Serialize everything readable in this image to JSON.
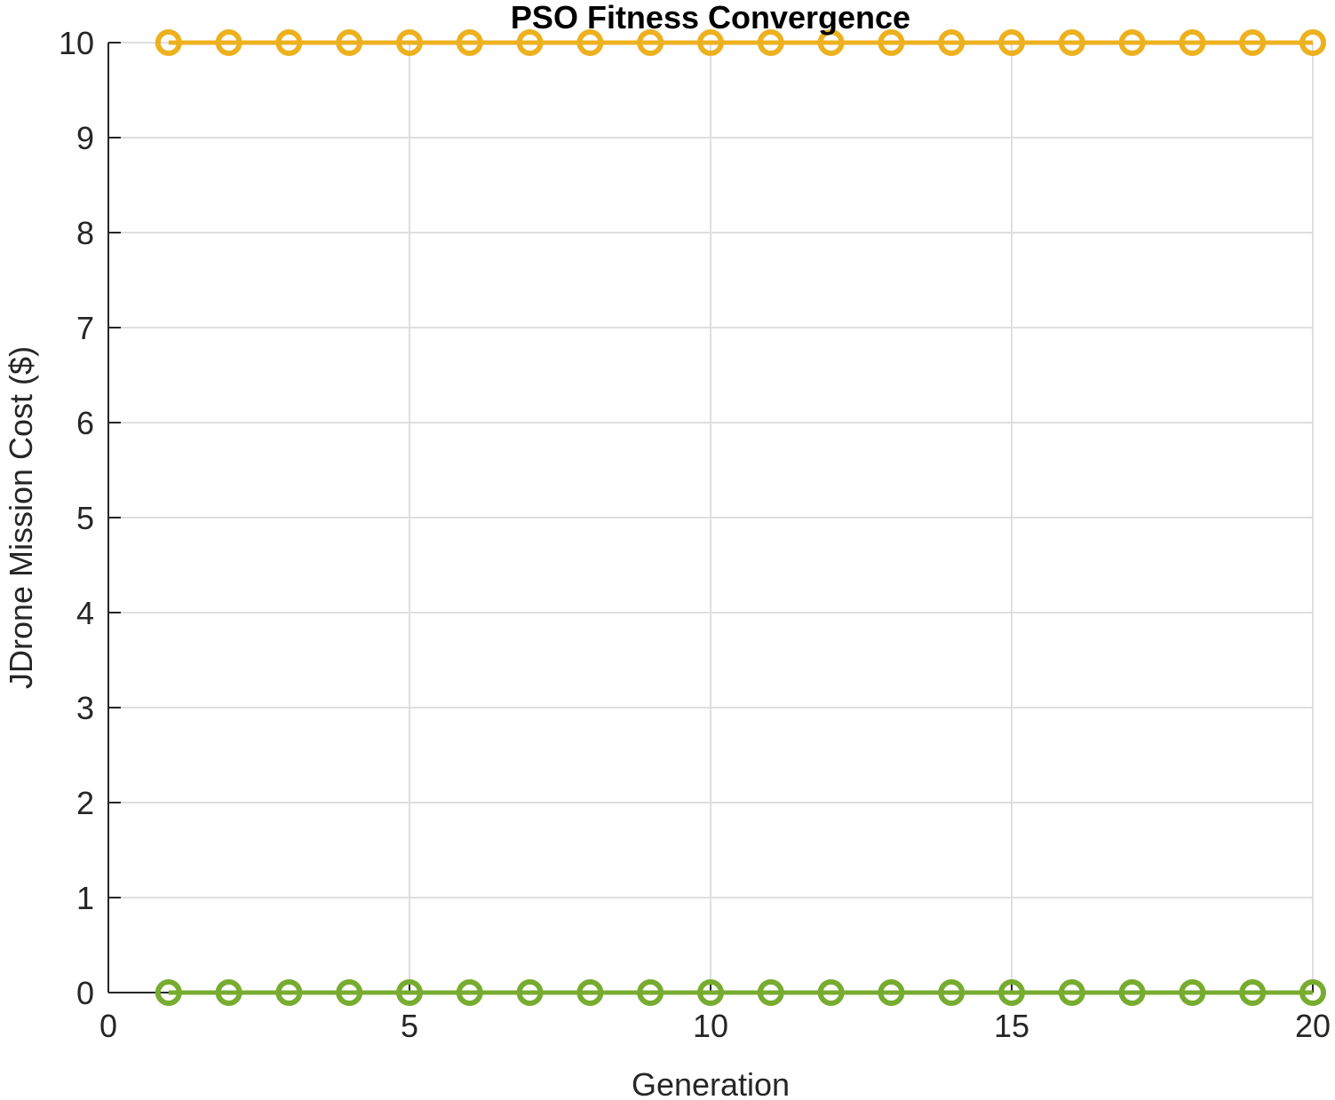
{
  "chart_data": {
    "type": "line",
    "title": "PSO Fitness Convergence",
    "xlabel": "Generation",
    "ylabel": "JDrone Mission Cost ($)",
    "xlim": [
      0,
      20
    ],
    "ylim": [
      0,
      10
    ],
    "xticks": [
      0,
      5,
      10,
      15,
      20
    ],
    "yticks": [
      0,
      1,
      2,
      3,
      4,
      5,
      6,
      7,
      8,
      9,
      10
    ],
    "grid": true,
    "legend": "none",
    "x": [
      1,
      2,
      3,
      4,
      5,
      6,
      7,
      8,
      9,
      10,
      11,
      12,
      13,
      14,
      15,
      16,
      17,
      18,
      19,
      20
    ],
    "series": [
      {
        "color": "#EDB120",
        "marker": "circle",
        "values": [
          10,
          10,
          10,
          10,
          10,
          10,
          10,
          10,
          10,
          10,
          10,
          10,
          10,
          10,
          10,
          10,
          10,
          10,
          10,
          10
        ]
      },
      {
        "color": "#77AC30",
        "marker": "circle",
        "values": [
          0,
          0,
          0,
          0,
          0,
          0,
          0,
          0,
          0,
          0,
          0,
          0,
          0,
          0,
          0,
          0,
          0,
          0,
          0,
          0
        ]
      }
    ]
  }
}
